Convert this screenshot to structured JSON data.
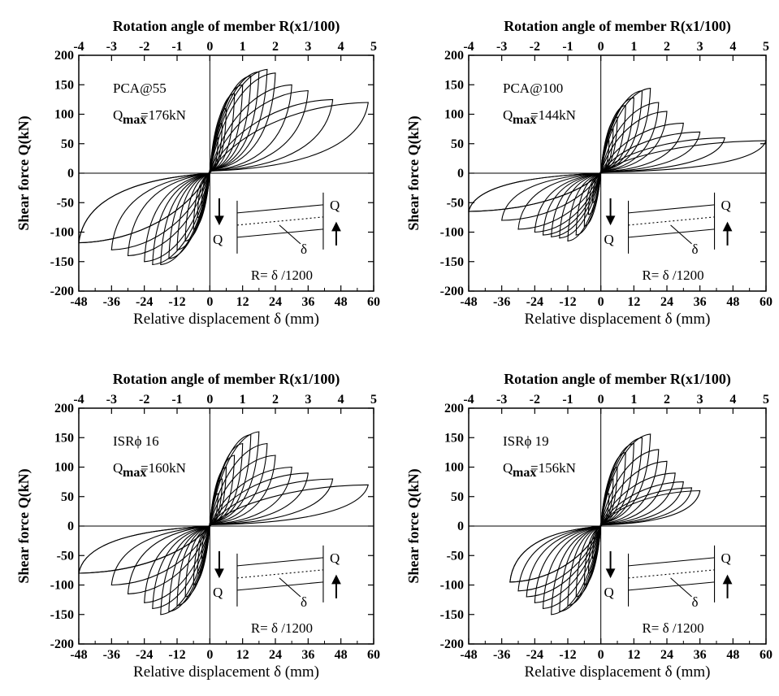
{
  "colors": {
    "ink": "#000000",
    "background": "#ffffff"
  },
  "chart_data": [
    {
      "type": "line",
      "specimen": "PCA@55",
      "qmax_symbol": "Q",
      "qmax_subscript": "max",
      "qmax_value": "=176kN",
      "top_axis_label": "Rotation angle of member  R(x1/100)",
      "xlabel": "Relative displacement  δ (mm)",
      "ylabel": "Shear force  Q(kN)",
      "xlim": [
        -48,
        60
      ],
      "ylim": [
        -200,
        200
      ],
      "x_ticks": [
        "-48",
        "-36",
        "-24",
        "-12",
        "0",
        "12",
        "24",
        "36",
        "48",
        "60"
      ],
      "y_ticks": [
        "200",
        "150",
        "100",
        "50",
        "0",
        "-50",
        "-100",
        "-150",
        "-200"
      ],
      "top_ticks": [
        "-4",
        "-3",
        "-2",
        "-1",
        "0",
        "1",
        "2",
        "3",
        "4",
        "5"
      ],
      "inset": {
        "q_top": "Q",
        "q_bottom": "Q",
        "delta": "δ",
        "formula": "R= δ /1200"
      },
      "peaks_positive": [
        [
          3,
          60
        ],
        [
          4.5,
          85
        ],
        [
          6,
          110
        ],
        [
          9,
          135
        ],
        [
          12,
          150
        ],
        [
          15,
          165
        ],
        [
          18,
          172
        ],
        [
          21,
          176
        ],
        [
          24,
          170
        ],
        [
          30,
          150
        ],
        [
          36,
          140
        ],
        [
          45,
          125
        ],
        [
          58,
          120
        ]
      ],
      "peaks_negative": [
        [
          -3,
          -55
        ],
        [
          -4.5,
          -75
        ],
        [
          -6,
          -95
        ],
        [
          -9,
          -115
        ],
        [
          -12,
          -130
        ],
        [
          -15,
          -145
        ],
        [
          -18,
          -155
        ],
        [
          -21,
          -155
        ],
        [
          -24,
          -150
        ],
        [
          -30,
          -140
        ],
        [
          -36,
          -130
        ],
        [
          -48,
          -118
        ]
      ]
    },
    {
      "type": "line",
      "specimen": "PCA@100",
      "qmax_symbol": "Q",
      "qmax_subscript": "max",
      "qmax_value": "=144kN",
      "top_axis_label": "Rotation angle of member  R(x1/100)",
      "xlabel": "Relative displacement  δ (mm)",
      "ylabel": "Shear force  Q(kN)",
      "xlim": [
        -48,
        60
      ],
      "ylim": [
        -200,
        200
      ],
      "x_ticks": [
        "-48",
        "-36",
        "-24",
        "-12",
        "0",
        "12",
        "24",
        "36",
        "48",
        "60"
      ],
      "y_ticks": [
        "200",
        "150",
        "100",
        "50",
        "0",
        "-50",
        "-100",
        "-150",
        "-200"
      ],
      "top_ticks": [
        "-4",
        "-3",
        "-2",
        "-1",
        "0",
        "1",
        "2",
        "3",
        "4",
        "5"
      ],
      "inset": {
        "q_top": "Q",
        "q_bottom": "Q",
        "delta": "δ",
        "formula": "R= δ /1200"
      },
      "peaks_positive": [
        [
          3,
          55
        ],
        [
          4.5,
          75
        ],
        [
          6,
          95
        ],
        [
          9,
          115
        ],
        [
          12,
          128
        ],
        [
          15,
          140
        ],
        [
          18,
          144
        ],
        [
          21,
          120
        ],
        [
          24,
          105
        ],
        [
          30,
          85
        ],
        [
          36,
          70
        ],
        [
          45,
          60
        ],
        [
          60,
          55
        ]
      ],
      "peaks_negative": [
        [
          -3,
          -50
        ],
        [
          -4.5,
          -70
        ],
        [
          -6,
          -90
        ],
        [
          -9,
          -105
        ],
        [
          -12,
          -115
        ],
        [
          -15,
          -110
        ],
        [
          -18,
          -108
        ],
        [
          -21,
          -105
        ],
        [
          -24,
          -100
        ],
        [
          -30,
          -95
        ],
        [
          -36,
          -80
        ],
        [
          -48,
          -65
        ]
      ]
    },
    {
      "type": "line",
      "specimen": "ISRϕ 16",
      "qmax_symbol": "Q",
      "qmax_subscript": "max",
      "qmax_value": "=160kN",
      "top_axis_label": "Rotation angle of member  R(x1/100)",
      "xlabel": "Relative displacement  δ (mm)",
      "ylabel": "Shear force  Q(kN)",
      "xlim": [
        -48,
        60
      ],
      "ylim": [
        -200,
        200
      ],
      "x_ticks": [
        "-48",
        "-36",
        "-24",
        "-12",
        "0",
        "12",
        "24",
        "36",
        "48",
        "60"
      ],
      "y_ticks": [
        "200",
        "150",
        "100",
        "50",
        "0",
        "-50",
        "-100",
        "-150",
        "-200"
      ],
      "top_ticks": [
        "-4",
        "-3",
        "-2",
        "-1",
        "0",
        "1",
        "2",
        "3",
        "4",
        "5"
      ],
      "inset": {
        "q_top": "Q",
        "q_bottom": "Q",
        "delta": "δ",
        "formula": "R= δ /1200"
      },
      "peaks_positive": [
        [
          3,
          55
        ],
        [
          4.5,
          80
        ],
        [
          6,
          100
        ],
        [
          9,
          120
        ],
        [
          12,
          140
        ],
        [
          15,
          155
        ],
        [
          18,
          160
        ],
        [
          21,
          140
        ],
        [
          24,
          120
        ],
        [
          30,
          100
        ],
        [
          36,
          90
        ],
        [
          45,
          80
        ],
        [
          58,
          70
        ]
      ],
      "peaks_negative": [
        [
          -3,
          -55
        ],
        [
          -4.5,
          -80
        ],
        [
          -6,
          -100
        ],
        [
          -9,
          -120
        ],
        [
          -12,
          -135
        ],
        [
          -15,
          -145
        ],
        [
          -18,
          -150
        ],
        [
          -21,
          -140
        ],
        [
          -24,
          -130
        ],
        [
          -30,
          -115
        ],
        [
          -36,
          -100
        ],
        [
          -48,
          -80
        ]
      ]
    },
    {
      "type": "line",
      "specimen": "ISRϕ 19",
      "qmax_symbol": "Q",
      "qmax_subscript": "max",
      "qmax_value": "=156kN",
      "top_axis_label": "Rotation angle of member  R(x1/100)",
      "xlabel": "Relative displacement  δ (mm)",
      "ylabel": "Shear force  Q(kN)",
      "xlim": [
        -48,
        60
      ],
      "ylim": [
        -200,
        200
      ],
      "x_ticks": [
        "-48",
        "-36",
        "-24",
        "-12",
        "0",
        "12",
        "24",
        "36",
        "48",
        "60"
      ],
      "y_ticks": [
        "200",
        "150",
        "100",
        "50",
        "0",
        "-50",
        "-100",
        "-150",
        "-200"
      ],
      "top_ticks": [
        "-4",
        "-3",
        "-2",
        "-1",
        "0",
        "1",
        "2",
        "3",
        "4",
        "5"
      ],
      "inset": {
        "q_top": "Q",
        "q_bottom": "Q",
        "delta": "δ",
        "formula": "R= δ /1200"
      },
      "peaks_positive": [
        [
          3,
          55
        ],
        [
          4.5,
          80
        ],
        [
          6,
          100
        ],
        [
          9,
          125
        ],
        [
          12,
          140
        ],
        [
          15,
          150
        ],
        [
          18,
          156
        ],
        [
          21,
          130
        ],
        [
          24,
          110
        ],
        [
          27,
          90
        ],
        [
          30,
          75
        ],
        [
          33,
          65
        ],
        [
          36,
          60
        ]
      ],
      "peaks_negative": [
        [
          -3,
          -55
        ],
        [
          -4.5,
          -80
        ],
        [
          -6,
          -100
        ],
        [
          -9,
          -120
        ],
        [
          -12,
          -135
        ],
        [
          -15,
          -145
        ],
        [
          -18,
          -150
        ],
        [
          -21,
          -140
        ],
        [
          -24,
          -130
        ],
        [
          -27,
          -120
        ],
        [
          -30,
          -110
        ],
        [
          -33,
          -95
        ]
      ]
    }
  ]
}
